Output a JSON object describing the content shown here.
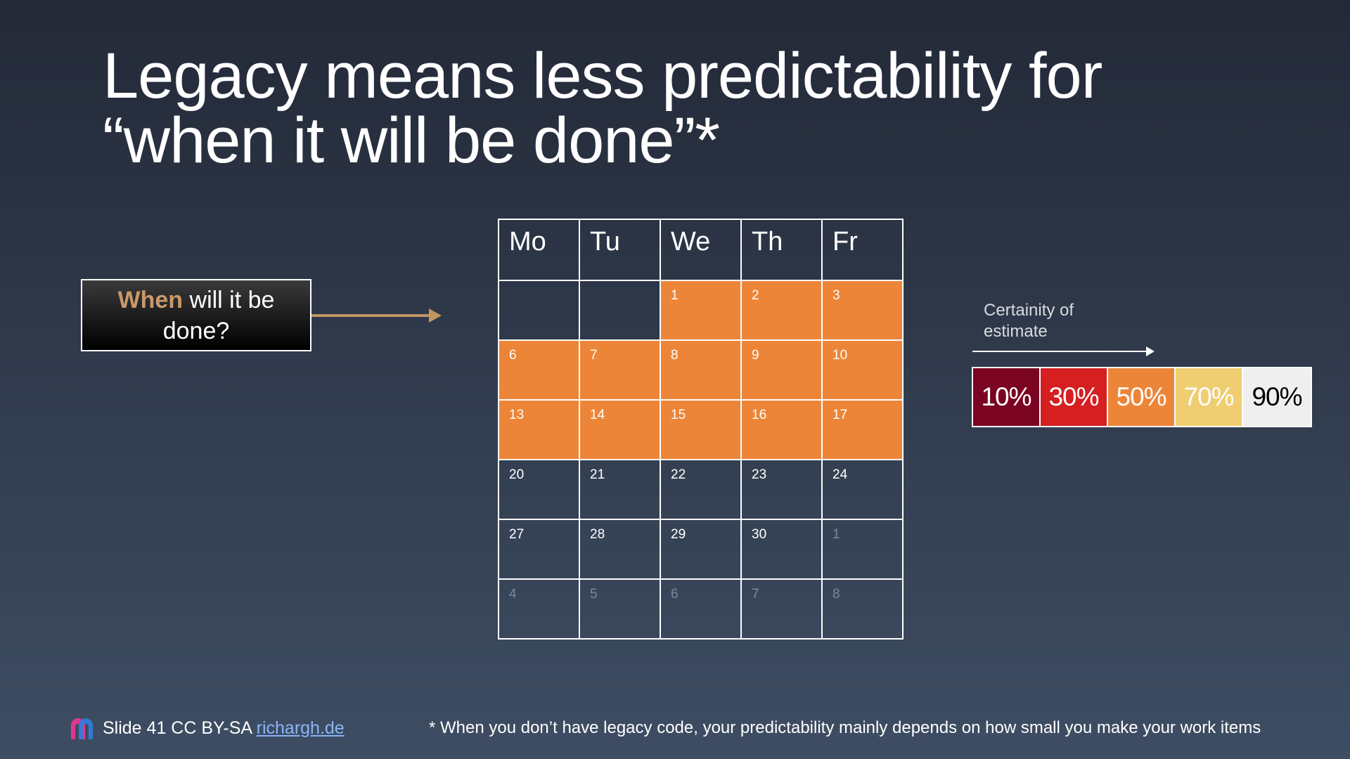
{
  "title": {
    "line1": "Legacy means less predictability for",
    "line2": "“when it will be done”*"
  },
  "question": {
    "highlight": "When",
    "rest": " will it be done?"
  },
  "calendar": {
    "headers": [
      "Mo",
      "Tu",
      "We",
      "Th",
      "Fr"
    ],
    "rows": [
      [
        "",
        "",
        "1",
        "2",
        "3"
      ],
      [
        "6",
        "7",
        "8",
        "9",
        "10"
      ],
      [
        "13",
        "14",
        "15",
        "16",
        "17"
      ],
      [
        "20",
        "21",
        "22",
        "23",
        "24"
      ],
      [
        "27",
        "28",
        "29",
        "30",
        "1"
      ],
      [
        "4",
        "5",
        "6",
        "7",
        "8"
      ]
    ],
    "highlight_color": "#ed8538"
  },
  "certainty": {
    "label": "Certainity of estimate",
    "levels": [
      {
        "label": "10%",
        "bg": "#7a0421",
        "fg": "#ffffff"
      },
      {
        "label": "30%",
        "bg": "#d51f21",
        "fg": "#ffffff"
      },
      {
        "label": "50%",
        "bg": "#ed8538",
        "fg": "#ffffff"
      },
      {
        "label": "70%",
        "bg": "#efcd71",
        "fg": "#ffffff"
      },
      {
        "label": "90%",
        "bg": "#efefef",
        "fg": "#000000"
      }
    ]
  },
  "footer": {
    "slide": "Slide 41 CC BY-SA ",
    "link": "richargh.de",
    "footnote": "* When you don’t have legacy code, your predictability mainly depends on how small you make your work items"
  }
}
